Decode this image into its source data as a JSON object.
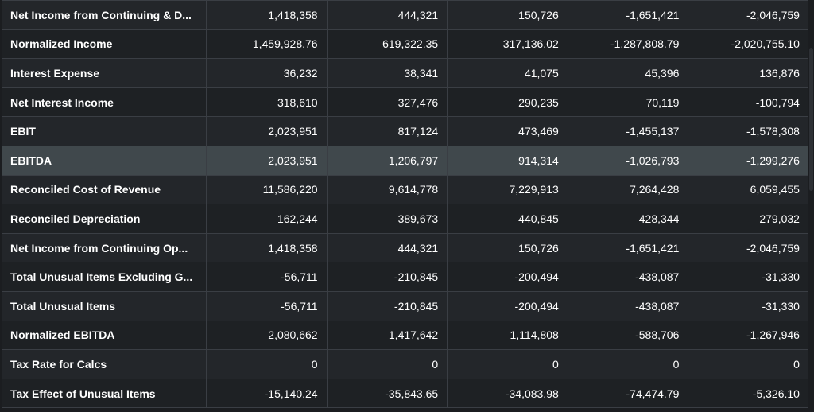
{
  "table": {
    "highlighted_row": 5,
    "rows": [
      {
        "label": "Net Income from Continuing & D...",
        "values": [
          "1,418,358",
          "444,321",
          "150,726",
          "-1,651,421",
          "-2,046,759"
        ]
      },
      {
        "label": "Normalized Income",
        "values": [
          "1,459,928.76",
          "619,322.35",
          "317,136.02",
          "-1,287,808.79",
          "-2,020,755.10"
        ]
      },
      {
        "label": "Interest Expense",
        "values": [
          "36,232",
          "38,341",
          "41,075",
          "45,396",
          "136,876"
        ]
      },
      {
        "label": "Net Interest Income",
        "values": [
          "318,610",
          "327,476",
          "290,235",
          "70,119",
          "-100,794"
        ]
      },
      {
        "label": "EBIT",
        "values": [
          "2,023,951",
          "817,124",
          "473,469",
          "-1,455,137",
          "-1,578,308"
        ]
      },
      {
        "label": "EBITDA",
        "values": [
          "2,023,951",
          "1,206,797",
          "914,314",
          "-1,026,793",
          "-1,299,276"
        ]
      },
      {
        "label": "Reconciled Cost of Revenue",
        "values": [
          "11,586,220",
          "9,614,778",
          "7,229,913",
          "7,264,428",
          "6,059,455"
        ]
      },
      {
        "label": "Reconciled Depreciation",
        "values": [
          "162,244",
          "389,673",
          "440,845",
          "428,344",
          "279,032"
        ]
      },
      {
        "label": "Net Income from Continuing Op...",
        "values": [
          "1,418,358",
          "444,321",
          "150,726",
          "-1,651,421",
          "-2,046,759"
        ]
      },
      {
        "label": "Total Unusual Items Excluding G...",
        "values": [
          "-56,711",
          "-210,845",
          "-200,494",
          "-438,087",
          "-31,330"
        ]
      },
      {
        "label": "Total Unusual Items",
        "values": [
          "-56,711",
          "-210,845",
          "-200,494",
          "-438,087",
          "-31,330"
        ]
      },
      {
        "label": "Normalized EBITDA",
        "values": [
          "2,080,662",
          "1,417,642",
          "1,114,808",
          "-588,706",
          "-1,267,946"
        ]
      },
      {
        "label": "Tax Rate for Calcs",
        "values": [
          "0",
          "0",
          "0",
          "0",
          "0"
        ]
      },
      {
        "label": "Tax Effect of Unusual Items",
        "values": [
          "-15,140.24",
          "-35,843.65",
          "-34,083.98",
          "-74,474.79",
          "-5,326.10"
        ]
      }
    ]
  }
}
